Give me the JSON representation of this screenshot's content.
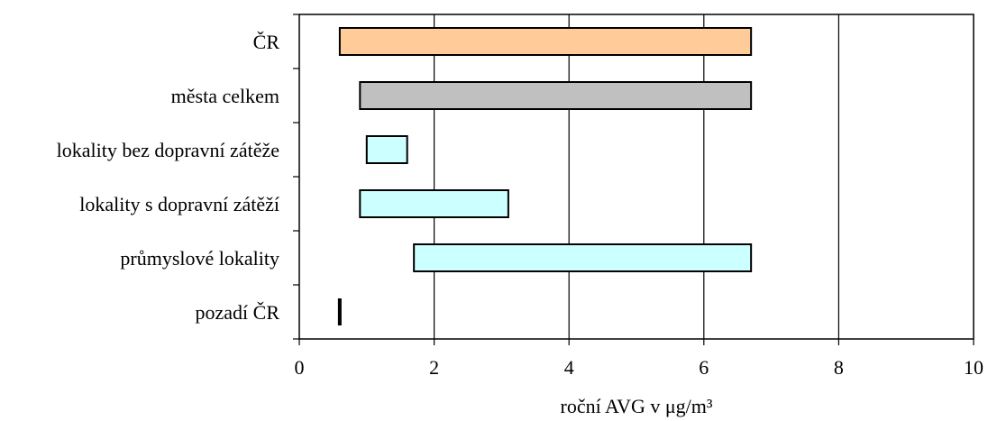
{
  "chart_data": {
    "type": "bar",
    "orientation": "horizontal",
    "subtype": "floating-range",
    "categories": [
      "ČR",
      "města celkem",
      "lokality bez dopravní zátěže",
      "lokality s dopravní zátěží",
      "průmyslové lokality",
      "pozadí ČR"
    ],
    "ranges": [
      {
        "min": 0.6,
        "max": 6.7,
        "color": "#FFCC99"
      },
      {
        "min": 0.9,
        "max": 6.7,
        "color": "#C0C0C0"
      },
      {
        "min": 1.0,
        "max": 1.6,
        "color": "#CCFFFF"
      },
      {
        "min": 0.9,
        "max": 3.1,
        "color": "#CCFFFF"
      },
      {
        "min": 1.7,
        "max": 6.7,
        "color": "#CCFFFF"
      },
      {
        "min": 0.6,
        "max": 0.6,
        "color": "#000000"
      }
    ],
    "xlabel": "roční AVG v μg/m³",
    "xlim": [
      0,
      10
    ],
    "xticks": [
      "0",
      "2",
      "4",
      "6",
      "8",
      "10"
    ],
    "grid": "vertical"
  }
}
